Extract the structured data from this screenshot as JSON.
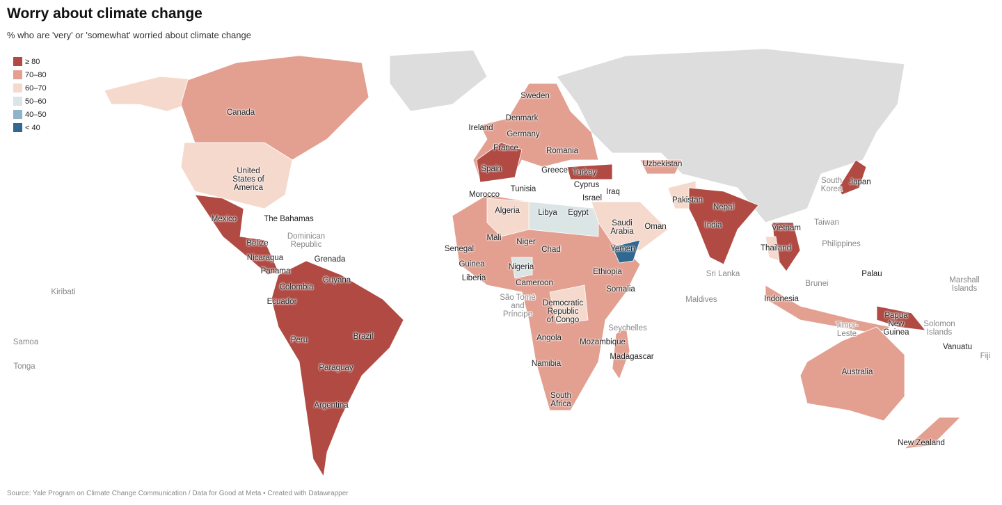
{
  "header": {
    "title": "Worry about climate change",
    "subtitle": "% who are 'very' or 'somewhat' worried about climate change"
  },
  "legend": [
    {
      "label": "≥ 80",
      "key": "c80",
      "color": "#b04a43"
    },
    {
      "label": "70–80",
      "key": "c70",
      "color": "#e3a091"
    },
    {
      "label": "60–70",
      "key": "c60",
      "color": "#f5d9cc"
    },
    {
      "label": "50–60",
      "key": "c50",
      "color": "#dce5e6"
    },
    {
      "label": "40–50",
      "key": "c40",
      "color": "#8fb3c9"
    },
    {
      "label": "< 40",
      "key": "c0",
      "color": "#30688f"
    }
  ],
  "no_data_color": "#dddddd",
  "labels": [
    {
      "name": "Canada"
    },
    {
      "name": "United\nStates of\nAmerica"
    },
    {
      "name": "Mexico"
    },
    {
      "name": "The Bahamas"
    },
    {
      "name": "Dominican\nRepublic",
      "small": true
    },
    {
      "name": "Belize"
    },
    {
      "name": "Nicaragua"
    },
    {
      "name": "Grenada"
    },
    {
      "name": "Panama"
    },
    {
      "name": "Colombia"
    },
    {
      "name": "Guyana"
    },
    {
      "name": "Ecuador"
    },
    {
      "name": "Kiribati",
      "small": true
    },
    {
      "name": "Samoa",
      "small": true
    },
    {
      "name": "Tonga",
      "small": true
    },
    {
      "name": "Peru"
    },
    {
      "name": "Brazil"
    },
    {
      "name": "Paraguay"
    },
    {
      "name": "Argentina"
    },
    {
      "name": "Sweden"
    },
    {
      "name": "Denmark"
    },
    {
      "name": "Ireland"
    },
    {
      "name": "Germany"
    },
    {
      "name": "France"
    },
    {
      "name": "Romania"
    },
    {
      "name": "Spain"
    },
    {
      "name": "Greece"
    },
    {
      "name": "Turkey"
    },
    {
      "name": "Cyprus"
    },
    {
      "name": "Iraq"
    },
    {
      "name": "Israel"
    },
    {
      "name": "Tunisia"
    },
    {
      "name": "Morocco"
    },
    {
      "name": "Algeria"
    },
    {
      "name": "Libya"
    },
    {
      "name": "Egypt"
    },
    {
      "name": "Uzbekistan"
    },
    {
      "name": "Pakistan"
    },
    {
      "name": "Nepal"
    },
    {
      "name": "India"
    },
    {
      "name": "Saudi\nArabia"
    },
    {
      "name": "Oman"
    },
    {
      "name": "Yemen"
    },
    {
      "name": "Mali"
    },
    {
      "name": "Niger"
    },
    {
      "name": "Senegal"
    },
    {
      "name": "Chad"
    },
    {
      "name": "Guinea"
    },
    {
      "name": "Nigeria"
    },
    {
      "name": "Liberia"
    },
    {
      "name": "Cameroon"
    },
    {
      "name": "Ethiopia"
    },
    {
      "name": "Somalia"
    },
    {
      "name": "São Tomé\nand\nPríncipe",
      "small": true
    },
    {
      "name": "Democratic\nRepublic\nof Congo"
    },
    {
      "name": "Seychelles",
      "small": true
    },
    {
      "name": "Angola"
    },
    {
      "name": "Mozambique"
    },
    {
      "name": "Madagascar"
    },
    {
      "name": "Namibia"
    },
    {
      "name": "South\nAfrica"
    },
    {
      "name": "Maldives",
      "small": true
    },
    {
      "name": "Sri Lanka",
      "small": true
    },
    {
      "name": "Thailand"
    },
    {
      "name": "Vietnam"
    },
    {
      "name": "Taiwan",
      "small": true
    },
    {
      "name": "Philippines",
      "small": true
    },
    {
      "name": "Palau"
    },
    {
      "name": "South\nKorea",
      "small": true
    },
    {
      "name": "Japan"
    },
    {
      "name": "Brunei",
      "small": true
    },
    {
      "name": "Indonesia"
    },
    {
      "name": "Timor-\nLeste",
      "small": true
    },
    {
      "name": "Papua\nNew\nGuinea"
    },
    {
      "name": "Solomon\nIslands",
      "small": true
    },
    {
      "name": "Marshall\nIslands",
      "small": true
    },
    {
      "name": "Vanuatu"
    },
    {
      "name": "Fiji",
      "small": true
    },
    {
      "name": "Australia"
    },
    {
      "name": "New Zealand"
    }
  ],
  "footer": {
    "source": "Source: Yale Program on Climate Change Communication / Data for Good at Meta • Created with Datawrapper"
  }
}
